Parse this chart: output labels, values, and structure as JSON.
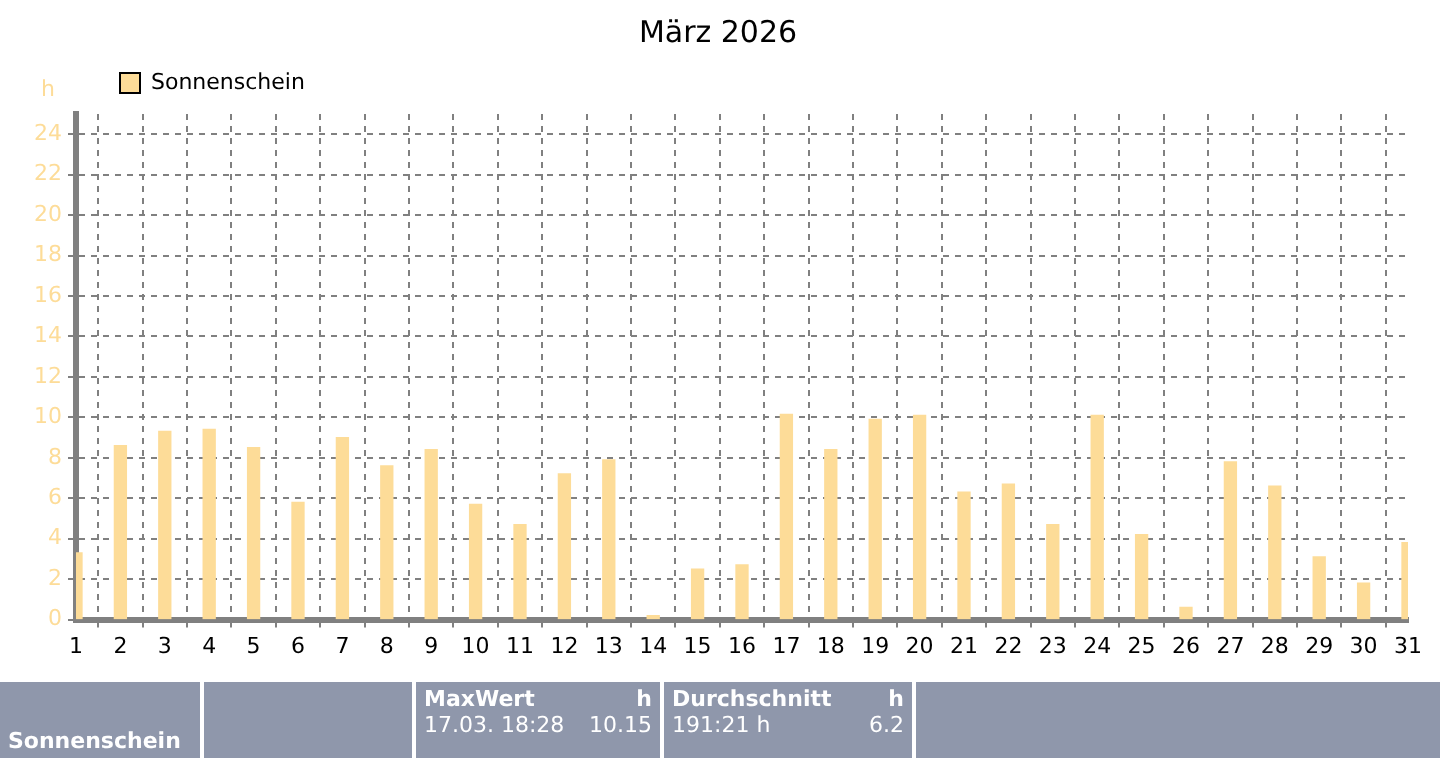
{
  "chart_data": {
    "type": "bar",
    "title": "März 2026",
    "ylabel": "h",
    "x": [
      1,
      2,
      3,
      4,
      5,
      6,
      7,
      8,
      9,
      10,
      11,
      12,
      13,
      14,
      15,
      16,
      17,
      18,
      19,
      20,
      21,
      22,
      23,
      24,
      25,
      26,
      27,
      28,
      29,
      30,
      31
    ],
    "series": [
      {
        "name": "Sonnenschein",
        "color": "#fddc98",
        "values": [
          3.3,
          8.6,
          9.3,
          9.4,
          8.5,
          5.8,
          9.0,
          7.6,
          8.4,
          5.7,
          4.7,
          7.2,
          7.9,
          0.2,
          2.5,
          2.7,
          10.15,
          8.4,
          9.9,
          10.1,
          6.3,
          6.7,
          4.7,
          10.1,
          4.2,
          0.6,
          7.8,
          6.6,
          3.1,
          1.8,
          3.8
        ]
      }
    ],
    "xlim": [
      1,
      31
    ],
    "xticks": [
      1,
      2,
      3,
      4,
      5,
      6,
      7,
      8,
      9,
      10,
      11,
      12,
      13,
      14,
      15,
      16,
      17,
      18,
      19,
      20,
      21,
      22,
      23,
      24,
      25,
      26,
      27,
      28,
      29,
      30,
      31
    ],
    "ylim": [
      0,
      25
    ],
    "yticks": [
      0,
      2,
      4,
      6,
      8,
      10,
      12,
      14,
      16,
      18,
      20,
      22,
      24
    ],
    "grid": true,
    "legend": "top left",
    "annotations": [
      "Sonnenschein",
      "MaxWert",
      "h",
      "17.03.  18:28",
      "10.15",
      "Durchschnitt",
      "h",
      "191:21 h",
      "6.2"
    ]
  }
}
